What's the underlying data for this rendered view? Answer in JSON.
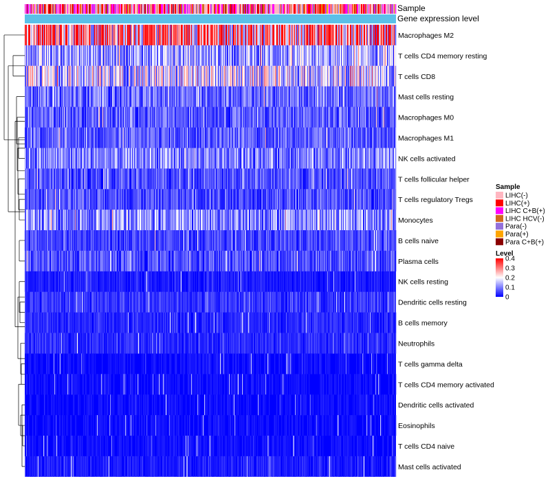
{
  "chart_data": {
    "type": "heatmap",
    "title": "",
    "annotation_rows": [
      "Sample",
      "Gene expression level"
    ],
    "rows": [
      "Macrophages M2",
      "T cells CD4 memory resting",
      "T cells CD8",
      "Mast cells resting",
      "Macrophages M0",
      "Macrophages M1",
      "NK cells activated",
      "T cells follicular helper",
      "T cells regulatory  Tregs",
      "Monocytes",
      "B cells naive",
      "Plasma cells",
      "NK cells resting",
      "Dendritic cells resting",
      "B cells memory",
      "Neutrophils",
      "T cells gamma delta",
      "T cells CD4 memory activated",
      "Dendritic cells activated",
      "Eosinophils",
      "T cells CD4 naive",
      "Mast cells activated"
    ],
    "row_mean_level": [
      0.3,
      0.12,
      0.16,
      0.08,
      0.07,
      0.07,
      0.1,
      0.06,
      0.06,
      0.11,
      0.05,
      0.06,
      0.02,
      0.04,
      0.03,
      0.03,
      0.01,
      0.01,
      0.01,
      0.01,
      0.01,
      0.02
    ],
    "column_count": 540,
    "legends": {
      "sample": {
        "title": "Sample",
        "items": [
          {
            "label": "LIHC(-)",
            "color": "#FFB6C1"
          },
          {
            "label": "LIHC(+)",
            "color": "#FF0000"
          },
          {
            "label": "LIHC C+B(+)",
            "color": "#FF00FF"
          },
          {
            "label": "LIHC HCV(-)",
            "color": "#D2691E"
          },
          {
            "label": "Para(-)",
            "color": "#9370DB"
          },
          {
            "label": "Para(+)",
            "color": "#FFA500"
          },
          {
            "label": "Para C+B(+)",
            "color": "#8B0000"
          }
        ]
      },
      "level": {
        "title": "Level",
        "ticks": [
          "0.4",
          "0.3",
          "0.2",
          "0.1",
          "0"
        ],
        "tick_values": [
          0.4,
          0.3,
          0.2,
          0.1,
          0
        ],
        "range": [
          0,
          0.4
        ],
        "colors": [
          "#0000FF",
          "#FFFFFF",
          "#FF0000"
        ]
      }
    },
    "gene_expression_color": "#5BC0E8"
  }
}
